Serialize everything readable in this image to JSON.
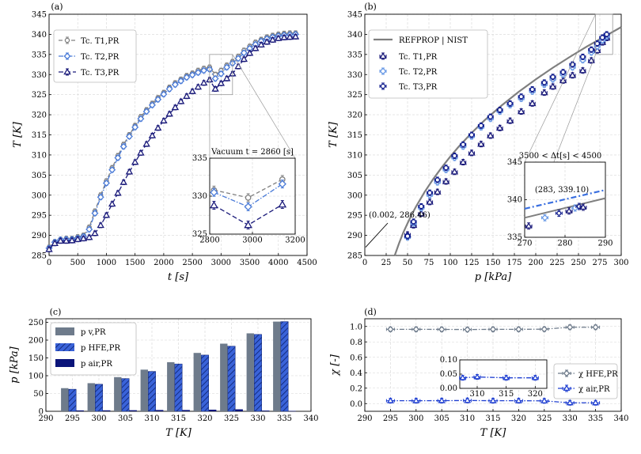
{
  "chart_data": [
    {
      "id": "a",
      "panel_label": "(a)",
      "type": "line",
      "xlabel": "t [s]",
      "ylabel": "T [K]",
      "xlim": [
        0,
        4500
      ],
      "ylim": [
        285,
        345
      ],
      "xticks": [
        "0",
        "500",
        "1000",
        "1500",
        "2000",
        "2500",
        "3000",
        "3500",
        "4000",
        "4500"
      ],
      "yticks": [
        "285",
        "290",
        "295",
        "300",
        "305",
        "310",
        "315",
        "320",
        "325",
        "330",
        "335",
        "340",
        "345"
      ],
      "grid": true,
      "legend_position": "top-left",
      "series": [
        {
          "name": "Tc. T1,PR",
          "color": "#808080",
          "dash": "5 3",
          "marker": "circle",
          "x": [
            0,
            100,
            200,
            300,
            400,
            500,
            600,
            700,
            800,
            900,
            1000,
            1100,
            1200,
            1300,
            1400,
            1500,
            1600,
            1700,
            1800,
            1900,
            2000,
            2100,
            2200,
            2300,
            2400,
            2500,
            2600,
            2700,
            2800,
            2900,
            3000,
            3100,
            3200,
            3300,
            3400,
            3500,
            3600,
            3700,
            3800,
            3900,
            4000,
            4100,
            4200,
            4300
          ],
          "y": [
            287.0,
            288.4,
            289.0,
            289.2,
            289.2,
            289.6,
            290.0,
            292.0,
            296.0,
            300.0,
            303.5,
            306.8,
            309.8,
            312.6,
            315.0,
            317.3,
            319.5,
            321.2,
            322.8,
            324.2,
            325.5,
            326.8,
            327.9,
            328.8,
            329.7,
            330.3,
            331.0,
            331.5,
            331.8,
            330.0,
            331.0,
            332.3,
            333.2,
            334.5,
            336.0,
            337.0,
            338.0,
            338.7,
            339.3,
            339.7,
            340.0,
            340.2,
            340.3,
            340.3
          ]
        },
        {
          "name": "Tc. T2,PR",
          "color": "#4a7bd8",
          "dash": "6 2 1.5 2",
          "marker": "diamond",
          "x": [
            0,
            100,
            200,
            300,
            400,
            500,
            600,
            700,
            800,
            900,
            1000,
            1100,
            1200,
            1300,
            1400,
            1500,
            1600,
            1700,
            1800,
            1900,
            2000,
            2100,
            2200,
            2300,
            2400,
            2500,
            2600,
            2700,
            2800,
            2900,
            3000,
            3100,
            3200,
            3300,
            3400,
            3500,
            3600,
            3700,
            3800,
            3900,
            4000,
            4100,
            4200,
            4300
          ],
          "y": [
            286.8,
            288.3,
            288.9,
            289.0,
            289.0,
            289.3,
            289.7,
            291.5,
            295.5,
            299.5,
            303.0,
            306.3,
            309.3,
            312.1,
            314.6,
            316.9,
            319.0,
            320.8,
            322.4,
            323.8,
            325.1,
            326.4,
            327.5,
            328.4,
            329.3,
            329.9,
            330.5,
            331.0,
            331.3,
            329.0,
            330.2,
            331.8,
            332.8,
            334.0,
            335.4,
            336.5,
            337.5,
            338.3,
            338.9,
            339.3,
            339.6,
            339.8,
            339.9,
            340.0
          ]
        },
        {
          "name": "Tc. T3,PR",
          "color": "#1a1a7a",
          "dash": "6 3",
          "marker": "triangle",
          "x": [
            0,
            100,
            200,
            300,
            400,
            500,
            600,
            700,
            800,
            900,
            1000,
            1100,
            1200,
            1300,
            1400,
            1500,
            1600,
            1700,
            1800,
            1900,
            2000,
            2100,
            2200,
            2300,
            2400,
            2500,
            2600,
            2700,
            2800,
            2900,
            3000,
            3100,
            3200,
            3300,
            3400,
            3500,
            3600,
            3700,
            3800,
            3900,
            4000,
            4100,
            4200,
            4300
          ],
          "y": [
            286.5,
            288.0,
            288.6,
            288.6,
            288.7,
            289.0,
            289.2,
            289.5,
            290.5,
            292.5,
            295.0,
            297.8,
            300.5,
            303.2,
            305.8,
            308.2,
            310.5,
            312.7,
            314.8,
            316.7,
            318.5,
            320.2,
            321.8,
            323.3,
            324.6,
            325.8,
            326.9,
            327.9,
            328.7,
            326.4,
            327.8,
            329.0,
            330.2,
            332.0,
            333.8,
            335.3,
            336.5,
            337.4,
            338.1,
            338.6,
            339.0,
            339.2,
            339.3,
            339.4
          ]
        }
      ],
      "zoom_region": {
        "xlim": [
          2800,
          3200
        ],
        "ylim": [
          325,
          335
        ]
      },
      "inset": {
        "title": "Vacuum t = 2860 [s]",
        "xlim": [
          2800,
          3200
        ],
        "ylim": [
          325,
          335
        ],
        "xticks": [
          "2800",
          "3000",
          "3200"
        ],
        "yticks": [
          "325",
          "330",
          "335"
        ],
        "series": [
          {
            "x": [
              2820,
              2980,
              3140
            ],
            "y": [
              330.8,
              329.8,
              332.2
            ]
          },
          {
            "x": [
              2820,
              2980,
              3140
            ],
            "y": [
              330.5,
              328.6,
              331.6
            ]
          },
          {
            "x": [
              2820,
              2980,
              3140
            ],
            "y": [
              328.8,
              326.2,
              328.9
            ]
          }
        ]
      }
    },
    {
      "id": "b",
      "panel_label": "(b)",
      "type": "scatter",
      "xlabel": "p [kPa]",
      "ylabel": "T [K]",
      "xlim": [
        0,
        300
      ],
      "ylim": [
        285,
        345
      ],
      "xticks": [
        "0",
        "25",
        "50",
        "75",
        "100",
        "125",
        "150",
        "175",
        "200",
        "225",
        "250",
        "275",
        "300"
      ],
      "yticks": [
        "285",
        "290",
        "295",
        "300",
        "305",
        "310",
        "315",
        "320",
        "325",
        "330",
        "335",
        "340",
        "345"
      ],
      "grid": true,
      "legend_position": "top-left",
      "reference_curve": {
        "name": "REFPROP | NIST",
        "color": "#7f7f7f",
        "x": [
          35,
          40,
          45,
          50,
          55,
          60,
          70,
          80,
          90,
          100,
          110,
          125,
          140,
          160,
          180,
          200,
          220,
          240,
          260,
          280,
          300
        ],
        "y": [
          285,
          288.0,
          290.7,
          293.0,
          295.2,
          297.2,
          300.8,
          304.0,
          306.9,
          309.6,
          312.1,
          315.5,
          318.6,
          322.3,
          325.7,
          328.8,
          331.7,
          334.4,
          337.0,
          339.4,
          341.8
        ]
      },
      "series": [
        {
          "name": "Tc. T1,PR",
          "color": "#1a1a7a",
          "marker": "triangle",
          "x": [
            50,
            57,
            66,
            76,
            85,
            95,
            105,
            115,
            125,
            136,
            147,
            158,
            170,
            183,
            196,
            210,
            220,
            232,
            243,
            255,
            265,
            272,
            278,
            283
          ],
          "y": [
            290.2,
            292.5,
            295.4,
            298.3,
            300.8,
            303.4,
            305.8,
            308.2,
            310.5,
            312.7,
            314.8,
            316.7,
            318.5,
            320.8,
            322.8,
            325.5,
            327.0,
            328.5,
            329.8,
            331.0,
            333.5,
            336.0,
            338.0,
            339.1
          ]
        },
        {
          "name": "Tc. T2,PR",
          "color": "#6b9be6",
          "marker": "diamond",
          "x": [
            50,
            57,
            66,
            76,
            85,
            95,
            105,
            115,
            125,
            136,
            147,
            158,
            170,
            183,
            196,
            210,
            220,
            232,
            243,
            255,
            265,
            272,
            278,
            283
          ],
          "y": [
            289.5,
            293.0,
            296.8,
            300.0,
            303.2,
            306.3,
            309.3,
            312.1,
            314.6,
            316.9,
            319.0,
            320.8,
            322.4,
            324.0,
            325.8,
            327.5,
            328.8,
            330.0,
            331.8,
            333.6,
            335.5,
            337.0,
            338.5,
            339.5
          ]
        },
        {
          "name": "Tc. T3,PR",
          "color": "#0d1a8c",
          "marker": "circle",
          "x": [
            50,
            57,
            66,
            76,
            85,
            95,
            105,
            115,
            125,
            136,
            147,
            158,
            170,
            183,
            196,
            210,
            220,
            232,
            243,
            255,
            265,
            272,
            278,
            283
          ],
          "y": [
            289.8,
            293.4,
            297.2,
            300.6,
            303.8,
            306.8,
            309.8,
            312.6,
            315.0,
            317.3,
            319.5,
            321.2,
            322.8,
            324.5,
            326.3,
            328.0,
            329.4,
            330.6,
            332.5,
            334.4,
            336.2,
            337.7,
            339.2,
            340.0
          ]
        }
      ],
      "annotation": {
        "text": "(0.002, 286.46)",
        "x": 0.002,
        "y": 286.46
      },
      "zoom_region": {
        "xlim": [
          270,
          290
        ],
        "ylim": [
          335,
          345
        ]
      },
      "inset": {
        "title": "3500 < Δt[s] < 4500",
        "xlim": [
          270,
          290
        ],
        "ylim": [
          335,
          345
        ],
        "xticks": [
          "270",
          "280",
          "290"
        ],
        "yticks": [
          "335",
          "340",
          "345"
        ],
        "annotation": "(283, 339.10)",
        "fit_line": {
          "color": "#3a6fe0",
          "x": [
            270,
            290
          ],
          "y": [
            338.8,
            341.3
          ]
        },
        "ref_line": {
          "x": [
            270,
            290
          ],
          "y": [
            337.6,
            340.2
          ]
        },
        "series": [
          {
            "x": [
              271,
              275,
              278.5,
              281,
              282.5,
              283.5,
              284.5
            ],
            "y": [
              336.5,
              337.6,
              338.2,
              338.5,
              338.9,
              339.1,
              339.0
            ]
          }
        ]
      }
    },
    {
      "id": "c",
      "panel_label": "(c)",
      "type": "bar",
      "xlabel": "T [K]",
      "ylabel": "p [kPa]",
      "xlim": [
        290,
        340
      ],
      "ylim": [
        0,
        260
      ],
      "xticks": [
        "290",
        "295",
        "300",
        "305",
        "310",
        "315",
        "320",
        "325",
        "330",
        "335",
        "340"
      ],
      "yticks": [
        "0",
        "50",
        "100",
        "150",
        "200",
        "250"
      ],
      "grid": true,
      "legend_position": "top-left",
      "categories": [
        295,
        300,
        305,
        310,
        315,
        320,
        325,
        330,
        335
      ],
      "series": [
        {
          "name": "p v,PR",
          "color": "#6e7b8b",
          "values": [
            65,
            79,
            96,
            117,
            138,
            164,
            190,
            219,
            252
          ]
        },
        {
          "name": "p HFE,PR",
          "color": "#3a63d9",
          "values": [
            62,
            76,
            92,
            112,
            133,
            158,
            183,
            216,
            252
          ]
        },
        {
          "name": "p air,PR",
          "color": "#0a147a",
          "values": [
            2.5,
            2.7,
            3.0,
            3.6,
            3.6,
            4.5,
            5.5,
            2.0,
            1.0
          ]
        }
      ]
    },
    {
      "id": "d",
      "panel_label": "(d)",
      "type": "line",
      "xlabel": "T [K]",
      "ylabel": "χ [-]",
      "xlim": [
        290,
        340
      ],
      "ylim": [
        -0.1,
        1.1
      ],
      "xticks": [
        "290",
        "295",
        "300",
        "305",
        "310",
        "315",
        "320",
        "325",
        "330",
        "335",
        "340"
      ],
      "yticks": [
        "0.0",
        "0.2",
        "0.4",
        "0.6",
        "0.8",
        "1.0"
      ],
      "grid": true,
      "legend_position": "right",
      "series": [
        {
          "name": "χ HFE,PR",
          "color": "#6e7b8b",
          "x": [
            295,
            300,
            305,
            310,
            315,
            320,
            325,
            330,
            335
          ],
          "y": [
            0.963,
            0.963,
            0.962,
            0.96,
            0.963,
            0.963,
            0.965,
            0.99,
            0.99
          ]
        },
        {
          "name": "χ air,PR",
          "color": "#1f3fd1",
          "x": [
            295,
            300,
            305,
            310,
            315,
            320,
            325,
            330,
            335
          ],
          "y": [
            0.037,
            0.037,
            0.038,
            0.04,
            0.037,
            0.037,
            0.035,
            0.01,
            0.01
          ]
        }
      ],
      "inset": {
        "xlim": [
          307,
          322
        ],
        "ylim": [
          0,
          0.1
        ],
        "xticks": [
          "310",
          "315",
          "320"
        ],
        "yticks": [
          "0.00",
          "0.05",
          "0.10"
        ],
        "series": [
          {
            "x": [
              307.5,
              310,
              315,
              320
            ],
            "y": [
              0.037,
              0.04,
              0.037,
              0.037
            ]
          }
        ]
      }
    }
  ]
}
